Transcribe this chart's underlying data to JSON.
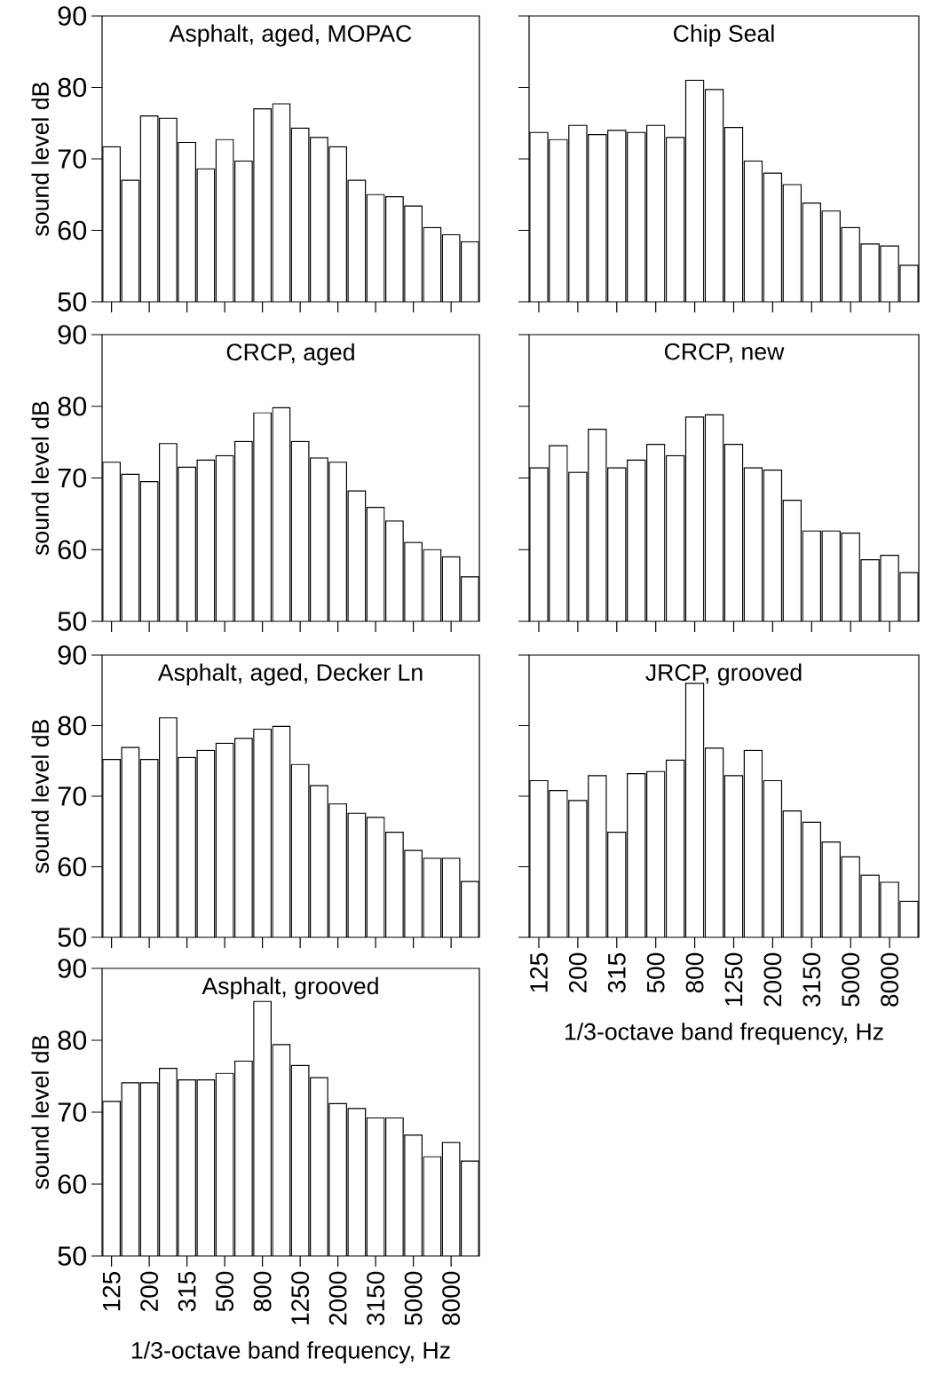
{
  "chart_data": [
    {
      "type": "bar",
      "title": "Asphalt, aged, MOPAC",
      "ylabel": "sound level dB",
      "tick_labels": "y",
      "color": "#ffffff",
      "ylim": [
        50,
        90
      ],
      "yticks": [
        50,
        60,
        70,
        80,
        90
      ],
      "categories": [
        "125",
        null,
        "200",
        null,
        "315",
        null,
        "500",
        null,
        "800",
        null,
        "1250",
        null,
        "2000",
        null,
        "3150",
        null,
        "5000",
        null,
        "8000",
        null
      ],
      "values": [
        71.7,
        67,
        76,
        75.7,
        72.3,
        68.6,
        72.7,
        69.7,
        77,
        77.7,
        74.3,
        73,
        71.7,
        67,
        65,
        64.7,
        63.4,
        60.4,
        59.4,
        58.4
      ]
    },
    {
      "type": "bar",
      "title": "Chip Seal",
      "tick_labels": false,
      "color": "#ffffff",
      "ylim": [
        50,
        90
      ],
      "yticks": [
        50,
        60,
        70,
        80,
        90
      ],
      "categories": [
        "125",
        null,
        "200",
        null,
        "315",
        null,
        "500",
        null,
        "800",
        null,
        "1250",
        null,
        "2000",
        null,
        "3150",
        null,
        "5000",
        null,
        "8000",
        null
      ],
      "values": [
        73.7,
        72.7,
        74.7,
        73.4,
        74,
        73.7,
        74.7,
        73,
        81,
        79.7,
        74.4,
        69.7,
        68,
        66.4,
        63.8,
        62.7,
        60.4,
        58.1,
        57.8,
        55.1
      ]
    },
    {
      "type": "bar",
      "title": "CRCP, aged",
      "ylabel": "sound level dB",
      "tick_labels": "y",
      "color": "#ffffff",
      "ylim": [
        50,
        90
      ],
      "yticks": [
        50,
        60,
        70,
        80,
        90
      ],
      "categories": [
        "125",
        null,
        "200",
        null,
        "315",
        null,
        "500",
        null,
        "800",
        null,
        "1250",
        null,
        "2000",
        null,
        "3150",
        null,
        "5000",
        null,
        "8000",
        null
      ],
      "values": [
        72.2,
        70.5,
        69.5,
        74.8,
        71.5,
        72.5,
        73.1,
        75.1,
        79.1,
        79.8,
        75.1,
        72.8,
        72.2,
        68.2,
        65.9,
        64,
        61,
        60,
        59,
        56.2
      ]
    },
    {
      "type": "bar",
      "title": "CRCP, new",
      "tick_labels": false,
      "color": "#ffffff",
      "ylim": [
        50,
        90
      ],
      "yticks": [
        50,
        60,
        70,
        80,
        90
      ],
      "categories": [
        "125",
        null,
        "200",
        null,
        "315",
        null,
        "500",
        null,
        "800",
        null,
        "1250",
        null,
        "2000",
        null,
        "3150",
        null,
        "5000",
        null,
        "8000",
        null
      ],
      "values": [
        71.4,
        74.5,
        70.8,
        76.8,
        71.4,
        72.5,
        74.7,
        73.1,
        78.5,
        78.8,
        74.7,
        71.4,
        71.1,
        66.9,
        62.6,
        62.6,
        62.3,
        58.6,
        59.2,
        56.8
      ]
    },
    {
      "type": "bar",
      "title": "Asphalt, aged, Decker Ln",
      "ylabel": "sound level dB",
      "tick_labels": "y",
      "color": "#ffffff",
      "ylim": [
        50,
        90
      ],
      "yticks": [
        50,
        60,
        70,
        80,
        90
      ],
      "categories": [
        "125",
        null,
        "200",
        null,
        "315",
        null,
        "500",
        null,
        "800",
        null,
        "1250",
        null,
        "2000",
        null,
        "3150",
        null,
        "5000",
        null,
        "8000",
        null
      ],
      "values": [
        75.2,
        76.9,
        75.2,
        81.1,
        75.5,
        76.5,
        77.5,
        78.2,
        79.5,
        79.9,
        74.5,
        71.5,
        68.9,
        67.6,
        67,
        64.9,
        62.3,
        61.2,
        61.2,
        57.9
      ]
    },
    {
      "type": "bar",
      "title": "JRCP, grooved",
      "xlabel": "1/3-octave band frequency,  Hz",
      "tick_labels": "x",
      "color": "#ffffff",
      "ylim": [
        50,
        90
      ],
      "yticks": [
        50,
        60,
        70,
        80,
        90
      ],
      "categories": [
        "125",
        null,
        "200",
        null,
        "315",
        null,
        "500",
        null,
        "800",
        null,
        "1250",
        null,
        "2000",
        null,
        "3150",
        null,
        "5000",
        null,
        "8000",
        null
      ],
      "values": [
        72.2,
        70.8,
        69.4,
        72.9,
        64.9,
        73.2,
        73.5,
        75.1,
        86,
        76.8,
        72.9,
        76.5,
        72.2,
        67.9,
        66.3,
        63.5,
        61.4,
        58.8,
        57.8,
        55.1
      ]
    },
    {
      "type": "bar",
      "title": "Asphalt, grooved",
      "ylabel": "sound level dB",
      "xlabel": "1/3-octave band frequency,  Hz",
      "color": "#ffffff",
      "ylim": [
        50,
        90
      ],
      "yticks": [
        50,
        60,
        70,
        80,
        90
      ],
      "categories": [
        "125",
        null,
        "200",
        null,
        "315",
        null,
        "500",
        null,
        "800",
        null,
        "1250",
        null,
        "2000",
        null,
        "3150",
        null,
        "5000",
        null,
        "8000",
        null
      ],
      "values": [
        71.5,
        74.1,
        74.1,
        76.1,
        74.5,
        74.5,
        75.4,
        77.1,
        85.4,
        79.4,
        76.5,
        74.8,
        71.2,
        70.5,
        69.2,
        69.2,
        66.8,
        63.8,
        65.8,
        63.2
      ]
    }
  ]
}
